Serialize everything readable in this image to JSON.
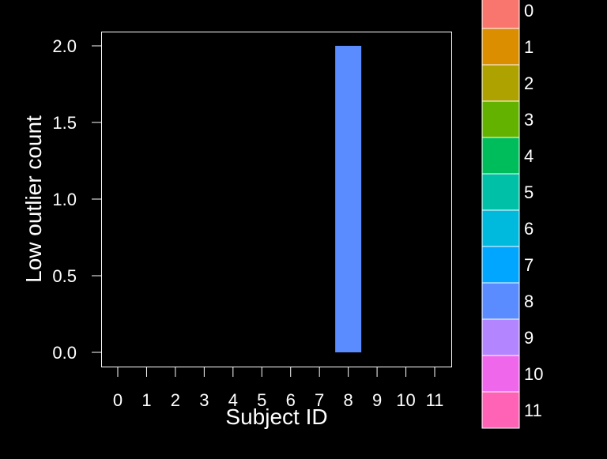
{
  "chart_data": {
    "type": "bar",
    "title": "",
    "xlabel": "Subject ID",
    "ylabel": "Low outlier count",
    "categories": [
      "0",
      "1",
      "2",
      "3",
      "4",
      "5",
      "6",
      "7",
      "8",
      "9",
      "10",
      "11"
    ],
    "values": [
      0,
      0,
      0,
      0,
      0,
      0,
      0,
      0,
      2,
      0,
      0,
      0
    ],
    "ylim": [
      -0.1,
      2.1
    ],
    "yticks": [
      "0.0",
      "0.5",
      "1.0",
      "1.5",
      "2.0"
    ],
    "grid": false,
    "legend_position": "right",
    "legend": {
      "labels": [
        "0",
        "1",
        "2",
        "3",
        "4",
        "5",
        "6",
        "7",
        "8",
        "9",
        "10",
        "11"
      ],
      "colors": [
        "#F8766D",
        "#DB8E00",
        "#AEA200",
        "#64B200",
        "#00BD5C",
        "#00C1A7",
        "#00BADE",
        "#00A6FF",
        "#5B8CFF",
        "#B385FF",
        "#EF67EB",
        "#FF63B6"
      ]
    },
    "colors": {
      "background": "#000000",
      "axis": "#ffffff",
      "text": "#ffffff"
    }
  }
}
